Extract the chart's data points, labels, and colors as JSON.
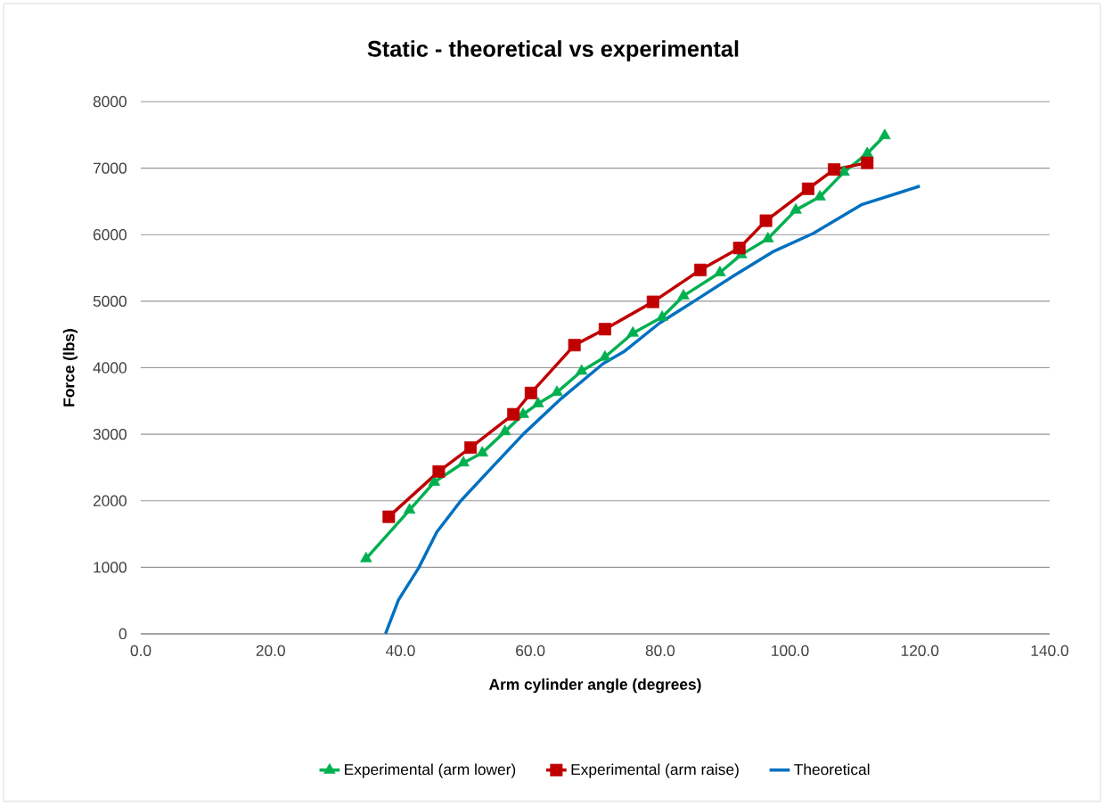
{
  "chart_data": {
    "type": "line",
    "title": "Static -  theoretical vs experimental",
    "xlabel": "Arm cylinder angle (degrees)",
    "ylabel": "Force (lbs)",
    "xlim": [
      0,
      140
    ],
    "ylim": [
      0,
      8000
    ],
    "xticks": [
      {
        "value": 0,
        "label": "0.0"
      },
      {
        "value": 20,
        "label": "20.0"
      },
      {
        "value": 40,
        "label": "40.0"
      },
      {
        "value": 60,
        "label": "60.0"
      },
      {
        "value": 80,
        "label": "80.0"
      },
      {
        "value": 100,
        "label": "100.0"
      },
      {
        "value": 120,
        "label": "120.0"
      },
      {
        "value": 140,
        "label": "140.0"
      }
    ],
    "yticks": [
      0,
      1000,
      2000,
      3000,
      4000,
      5000,
      6000,
      7000,
      8000
    ],
    "grid": "y",
    "legend": "bottom",
    "series": [
      {
        "name": "Experimental (arm lower)",
        "color": "#00b050",
        "marker": "triangle",
        "x": [
          34.7,
          41.4,
          45.2,
          49.7,
          52.6,
          56.1,
          58.9,
          61.2,
          64.1,
          67.9,
          71.5,
          75.8,
          80.3,
          83.6,
          89.2,
          92.5,
          96.6,
          100.9,
          104.6,
          108.3,
          111.9,
          114.6
        ],
        "values": [
          1130,
          1860,
          2280,
          2570,
          2720,
          3040,
          3300,
          3460,
          3630,
          3950,
          4160,
          4520,
          4760,
          5080,
          5430,
          5700,
          5940,
          6370,
          6570,
          6940,
          7220,
          7490
        ]
      },
      {
        "name": "Experimental (arm raise)",
        "color": "#c00000",
        "marker": "square",
        "x": [
          38.2,
          45.9,
          50.8,
          57.4,
          60.1,
          66.8,
          71.5,
          78.9,
          86.2,
          92.2,
          96.3,
          102.8,
          106.8,
          111.9
        ],
        "values": [
          1760,
          2440,
          2800,
          3300,
          3620,
          4340,
          4580,
          4990,
          5470,
          5800,
          6210,
          6690,
          6980,
          7080
        ]
      },
      {
        "name": "Theoretical",
        "color": "#0070c0",
        "marker": "none",
        "x": [
          37.7,
          39.7,
          42.8,
          45.6,
          49.3,
          53.8,
          58.9,
          64.8,
          71.2,
          74.4,
          79.9,
          85.4,
          91.3,
          97.3,
          103.6,
          111.0,
          120.0
        ],
        "values": [
          0,
          510,
          990,
          1530,
          2000,
          2470,
          3000,
          3540,
          4060,
          4240,
          4670,
          5010,
          5380,
          5740,
          6020,
          6450,
          6730
        ]
      }
    ]
  }
}
